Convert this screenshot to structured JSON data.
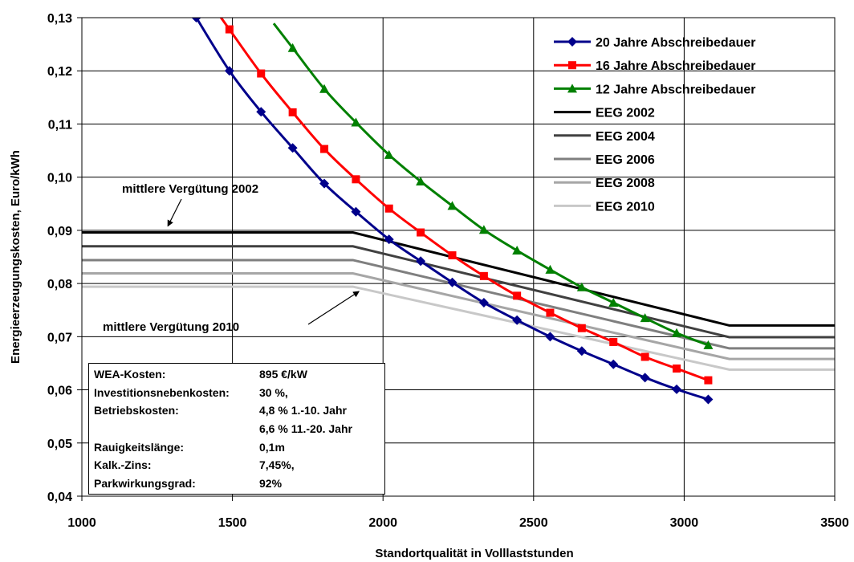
{
  "chart_data": {
    "type": "line",
    "xlabel": "Standortqualität in Volllaststunden",
    "ylabel": "Energieerzeugungskosten, Euro/kWh",
    "xlim": [
      1000,
      3500
    ],
    "ylim": [
      0.04,
      0.13
    ],
    "x_ticks": [
      "1000",
      "1500",
      "2000",
      "2500",
      "3000",
      "3500"
    ],
    "y_ticks": [
      "0,04",
      "0,05",
      "0,06",
      "0,07",
      "0,08",
      "0,09",
      "0,10",
      "0,11",
      "0,12",
      "0,13"
    ],
    "grid": "on",
    "legend_position": "top-right",
    "series": [
      {
        "name": "20 Jahre Abschreibedauer",
        "color": "#00008B",
        "marker": "diamond",
        "x": [
          1380,
          1490,
          1595,
          1700,
          1805,
          1910,
          2020,
          2125,
          2230,
          2335,
          2445,
          2555,
          2660,
          2765,
          2870,
          2975,
          3080
        ],
        "y": [
          0.13,
          0.12,
          0.1123,
          0.1055,
          0.0988,
          0.0935,
          0.0883,
          0.0842,
          0.0802,
          0.0764,
          0.0731,
          0.07,
          0.0673,
          0.0648,
          0.0623,
          0.0601,
          0.0582
        ]
      },
      {
        "name": "16 Jahre Abschreibedauer",
        "color": "#FF0000",
        "marker": "square",
        "x": [
          1490,
          1595,
          1700,
          1805,
          1910,
          2020,
          2125,
          2230,
          2335,
          2445,
          2555,
          2660,
          2765,
          2870,
          2975,
          3080
        ],
        "y": [
          0.1278,
          0.1195,
          0.1122,
          0.1053,
          0.0996,
          0.0941,
          0.0896,
          0.0853,
          0.0814,
          0.0777,
          0.0745,
          0.0716,
          0.069,
          0.0662,
          0.064,
          0.0618
        ]
      },
      {
        "name": "12 Jahre Abschreibedauer",
        "color": "#008000",
        "marker": "triangle",
        "x": [
          1700,
          1805,
          1910,
          2020,
          2125,
          2230,
          2335,
          2445,
          2555,
          2660,
          2765,
          2870,
          2975,
          3080
        ],
        "y": [
          0.1243,
          0.1166,
          0.1103,
          0.1042,
          0.0992,
          0.0946,
          0.0901,
          0.0862,
          0.0826,
          0.0793,
          0.0764,
          0.0735,
          0.0707,
          0.0684
        ]
      },
      {
        "name": "EEG 2002",
        "color": "#000000",
        "x": [
          1000,
          1900,
          3150,
          3500
        ],
        "y": [
          0.0896,
          0.0896,
          0.0721,
          0.0721
        ]
      },
      {
        "name": "EEG 2004",
        "color": "#404040",
        "x": [
          1000,
          1900,
          3150,
          3500
        ],
        "y": [
          0.087,
          0.087,
          0.0699,
          0.0699
        ]
      },
      {
        "name": "EEG 2006",
        "color": "#7F7F7F",
        "x": [
          1000,
          1900,
          3150,
          3500
        ],
        "y": [
          0.0844,
          0.0844,
          0.0678,
          0.0678
        ]
      },
      {
        "name": "EEG 2008",
        "color": "#A6A6A6",
        "x": [
          1000,
          1900,
          3150,
          3500
        ],
        "y": [
          0.0819,
          0.0819,
          0.0658,
          0.0658
        ]
      },
      {
        "name": "EEG 2010",
        "color": "#C8C8C8",
        "x": [
          1000,
          1900,
          3150,
          3500
        ],
        "y": [
          0.0794,
          0.0794,
          0.0638,
          0.0638
        ]
      }
    ],
    "annotations": [
      {
        "text": "mittlere Vergütung 2002",
        "arrow_to": [
          1275,
          0.0896
        ]
      },
      {
        "text": "mittlere Vergütung 2010",
        "arrow_to": [
          1850,
          0.0794
        ]
      }
    ]
  },
  "info_box": {
    "rows": [
      {
        "key": "WEA-Kosten:",
        "value": "895 €/kW"
      },
      {
        "key": "Investitionsnebenkosten:",
        "value": "30 %,"
      },
      {
        "key": "Betriebskosten:",
        "value": "4,8 %  1.-10.  Jahr"
      },
      {
        "key": "",
        "value": "6,6 % 11.-20. Jahr"
      },
      {
        "key": "Rauigkeitslänge:",
        "value": "0,1m"
      },
      {
        "key": "Kalk.-Zins:",
        "value": "7,45%,"
      },
      {
        "key": "Parkwirkungsgrad:",
        "value": "92%"
      }
    ]
  }
}
